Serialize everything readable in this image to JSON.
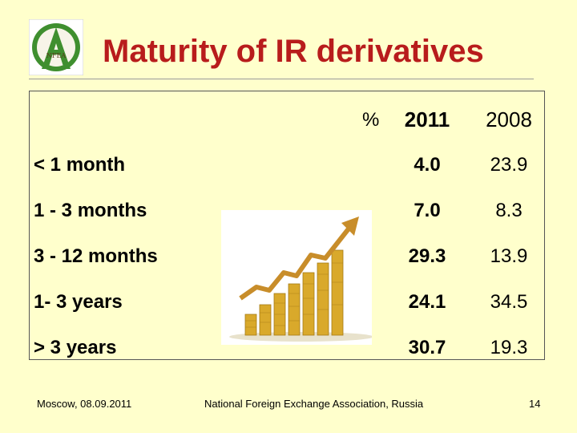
{
  "header": {
    "title": "Maturity of IR derivatives",
    "logo_text": "NFEA"
  },
  "table": {
    "unit": "%",
    "columns": [
      "2011",
      "2008"
    ],
    "rows": [
      {
        "label": "< 1 month",
        "v2011": "4.0",
        "v2008": "23.9"
      },
      {
        "label": "1 - 3 months",
        "v2011": "7.0",
        "v2008": "8.3"
      },
      {
        "label": "3 - 12 months",
        "v2011": "29.3",
        "v2008": "13.9"
      },
      {
        "label": "1- 3 years",
        "v2011": "24.1",
        "v2008": "34.5"
      },
      {
        "label": "> 3 years",
        "v2011": "30.7",
        "v2008": "19.3"
      }
    ]
  },
  "footer": {
    "left": "Moscow, 08.09.2011",
    "center": "National Foreign Exchange Association, Russia",
    "page": "14"
  },
  "colors": {
    "background": "#ffffcc",
    "title": "#b81c1c",
    "logo_green": "#3f8f2f",
    "coin": "#d9a92b",
    "arrow": "#c88d2a"
  }
}
